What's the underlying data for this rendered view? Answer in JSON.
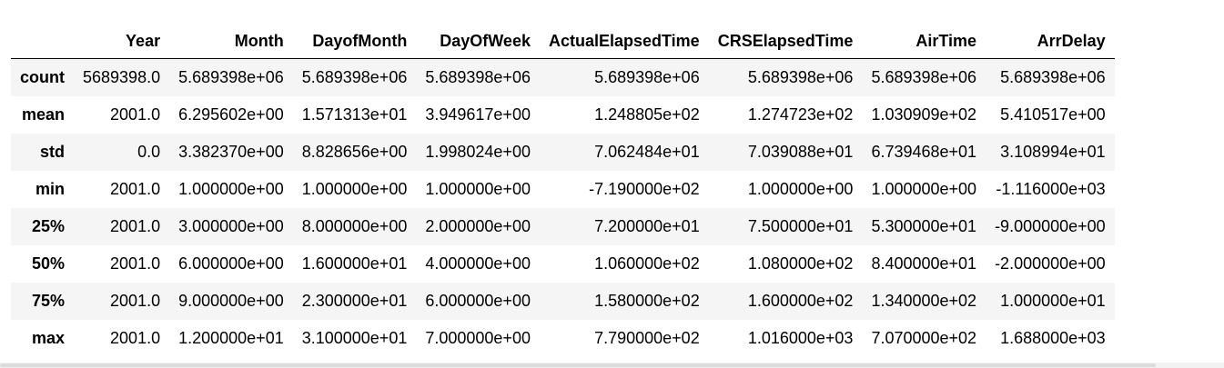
{
  "table": {
    "columns": [
      "",
      "Year",
      "Month",
      "DayofMonth",
      "DayOfWeek",
      "ActualElapsedTime",
      "CRSElapsedTime",
      "AirTime",
      "ArrDelay"
    ],
    "rows": [
      {
        "index": "count",
        "cells": [
          "5689398.0",
          "5.689398e+06",
          "5.689398e+06",
          "5.689398e+06",
          "5.689398e+06",
          "5.689398e+06",
          "5.689398e+06",
          "5.689398e+06"
        ]
      },
      {
        "index": "mean",
        "cells": [
          "2001.0",
          "6.295602e+00",
          "1.571313e+01",
          "3.949617e+00",
          "1.248805e+02",
          "1.274723e+02",
          "1.030909e+02",
          "5.410517e+00"
        ]
      },
      {
        "index": "std",
        "cells": [
          "0.0",
          "3.382370e+00",
          "8.828656e+00",
          "1.998024e+00",
          "7.062484e+01",
          "7.039088e+01",
          "6.739468e+01",
          "3.108994e+01"
        ]
      },
      {
        "index": "min",
        "cells": [
          "2001.0",
          "1.000000e+00",
          "1.000000e+00",
          "1.000000e+00",
          "-7.190000e+02",
          "1.000000e+00",
          "1.000000e+00",
          "-1.116000e+03"
        ]
      },
      {
        "index": "25%",
        "cells": [
          "2001.0",
          "3.000000e+00",
          "8.000000e+00",
          "2.000000e+00",
          "7.200000e+01",
          "7.500000e+01",
          "5.300000e+01",
          "-9.000000e+00"
        ]
      },
      {
        "index": "50%",
        "cells": [
          "2001.0",
          "6.000000e+00",
          "1.600000e+01",
          "4.000000e+00",
          "1.060000e+02",
          "1.080000e+02",
          "8.400000e+01",
          "-2.000000e+00"
        ]
      },
      {
        "index": "75%",
        "cells": [
          "2001.0",
          "9.000000e+00",
          "2.300000e+01",
          "6.000000e+00",
          "1.580000e+02",
          "1.600000e+02",
          "1.340000e+02",
          "1.000000e+01"
        ]
      },
      {
        "index": "max",
        "cells": [
          "2001.0",
          "1.200000e+01",
          "3.100000e+01",
          "7.000000e+00",
          "7.790000e+02",
          "1.016000e+03",
          "7.070000e+02",
          "1.688000e+03"
        ]
      }
    ]
  }
}
